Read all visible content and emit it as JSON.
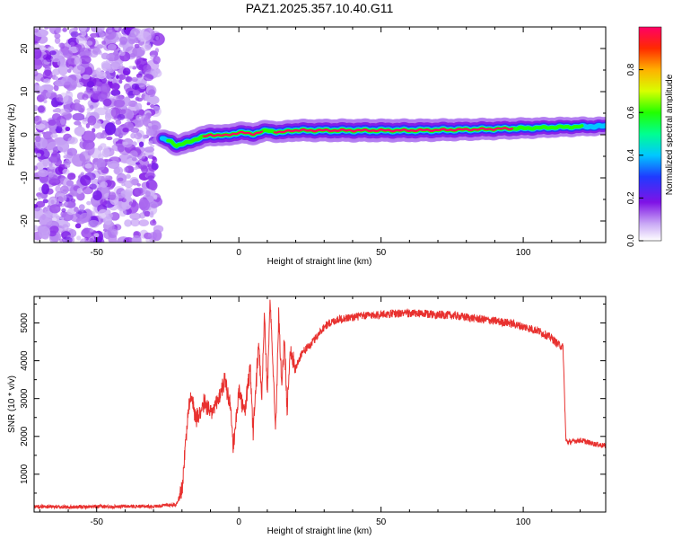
{
  "title": "PAZ1.2025.357.10.40.G11",
  "chart_data": [
    {
      "type": "heatmap",
      "xlabel": "Height of straight line (km)",
      "ylabel": "Frequency (Hz)",
      "xlim": [
        -72,
        129
      ],
      "ylim": [
        -25,
        25
      ],
      "xticks": [
        -50,
        0,
        50,
        100
      ],
      "yticks": [
        -20,
        -10,
        0,
        10,
        20
      ],
      "colorbar": {
        "label": "Normalized spectral amplitude",
        "range": [
          0,
          1
        ],
        "ticks": [
          "0.0",
          "0.2",
          "0.4",
          "0.6",
          "0.8"
        ]
      },
      "noise_region_km": [
        -72,
        -27
      ],
      "ridge": {
        "x": [
          -27,
          -24,
          -22,
          -20,
          -15,
          -10,
          -5,
          0,
          5,
          10,
          15,
          18,
          25,
          40,
          60,
          80,
          100,
          115,
          129
        ],
        "freq_hz": [
          -1.0,
          -1.5,
          -2.5,
          -2.2,
          -1.0,
          0.0,
          -0.2,
          0.5,
          0.2,
          1.0,
          0.5,
          1.0,
          1.0,
          1.0,
          1.0,
          1.2,
          1.5,
          1.8,
          2.0
        ],
        "amplitude": [
          0.4,
          0.55,
          0.6,
          0.65,
          0.7,
          0.75,
          0.75,
          0.75,
          0.75,
          0.7,
          0.75,
          0.8,
          0.85,
          0.9,
          0.9,
          0.8,
          0.7,
          0.55,
          0.4
        ]
      }
    },
    {
      "type": "line",
      "xlabel": "Height of straight line (km)",
      "ylabel": "SNR (10 * v/v)",
      "xlim": [
        -72,
        129
      ],
      "ylim": [
        0,
        5700
      ],
      "xticks": [
        -50,
        0,
        50,
        100
      ],
      "yticks": [
        1000,
        2000,
        3000,
        4000,
        5000
      ],
      "series": [
        {
          "name": "SNR",
          "color": "#e8312f",
          "x": [
            -72,
            -60,
            -50,
            -40,
            -30,
            -22,
            -20,
            -19,
            -18,
            -17,
            -15,
            -12,
            -10,
            -8,
            -5,
            -3,
            -2,
            0,
            2,
            4,
            5,
            7,
            8,
            9,
            10,
            11,
            12,
            13,
            14,
            15,
            16,
            17,
            18,
            20,
            22,
            25,
            28,
            30,
            32,
            35,
            40,
            45,
            50,
            55,
            60,
            65,
            70,
            75,
            80,
            85,
            90,
            95,
            100,
            105,
            110,
            112,
            114,
            115,
            116,
            120,
            125,
            129
          ],
          "y": [
            150,
            130,
            140,
            150,
            150,
            200,
            600,
            1500,
            2600,
            3100,
            2500,
            2900,
            2600,
            2800,
            3500,
            2800,
            1700,
            3200,
            2600,
            3800,
            2100,
            4500,
            3000,
            5300,
            3100,
            5600,
            3800,
            2200,
            5300,
            3400,
            4500,
            2700,
            4300,
            3800,
            4200,
            4400,
            4700,
            4900,
            5000,
            5100,
            5150,
            5200,
            5220,
            5250,
            5250,
            5240,
            5220,
            5200,
            5150,
            5100,
            5050,
            5000,
            4900,
            4800,
            4600,
            4450,
            4350,
            1900,
            1850,
            1900,
            1800,
            1750
          ]
        }
      ]
    }
  ]
}
